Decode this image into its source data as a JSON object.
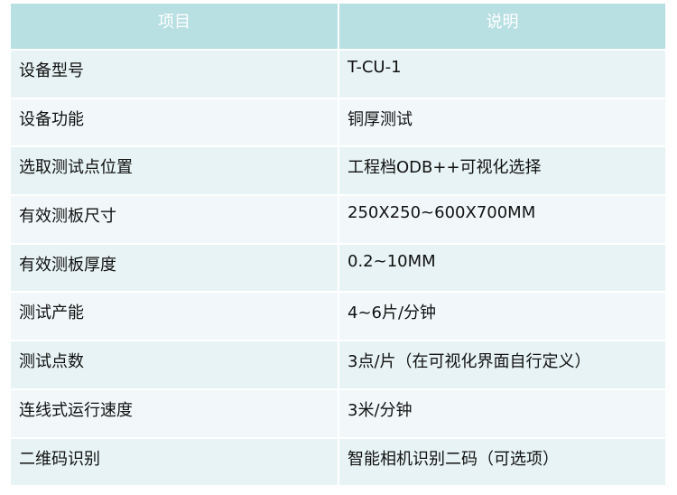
{
  "header": {
    "col1": "项目",
    "col2": "说明"
  },
  "rows": [
    {
      "item": "设备型号",
      "desc": "T-CU-1"
    },
    {
      "item": "设备功能",
      "desc": "铜厚测试"
    },
    {
      "item": "选取测试点位置",
      "desc": "工程档ODB++可视化选择"
    },
    {
      "item": "有效测板尺寸",
      "desc": "250X250~600X700MM"
    },
    {
      "item": "有效测板厚度",
      "desc": "0.2~10MM"
    },
    {
      "item": "测试产能",
      "desc": "4~6片/分钟"
    },
    {
      "item": "测试点数",
      "desc": "3点/片（在可视化界面自行定义）"
    },
    {
      "item": "连线式运行速度",
      "desc": "3米/分钟"
    },
    {
      "item": "二维码识别",
      "desc": "智能相机识别二码（可选项）"
    }
  ],
  "colors": {
    "header": "#b8dfe2",
    "row_odd": "#e7f3f4",
    "row_even": "#f2f8fa"
  }
}
